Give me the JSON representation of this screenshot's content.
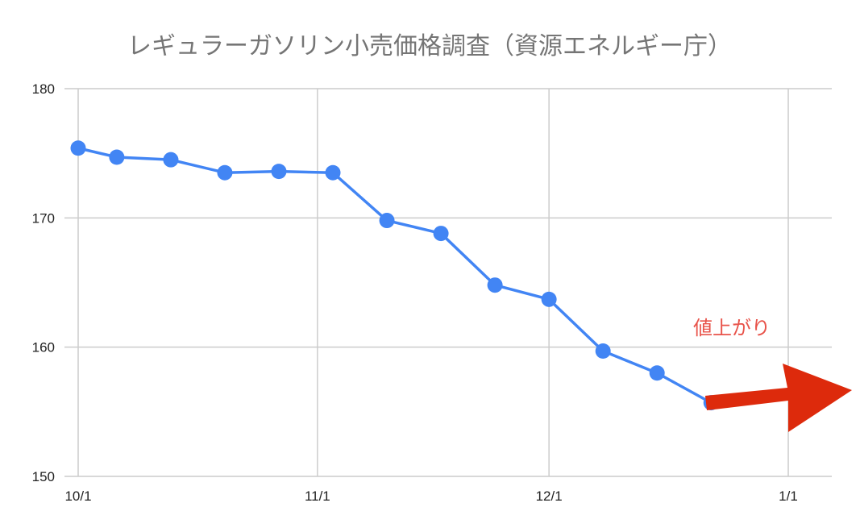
{
  "chart_data": {
    "type": "line",
    "title": "レギュラーガソリン小売価格調査（資源エネルギー庁）",
    "xlabel": "",
    "ylabel": "",
    "x_ticks": [
      "10/1",
      "11/1",
      "12/1",
      "1/1"
    ],
    "y_ticks": [
      150,
      160,
      170,
      180
    ],
    "ylim": [
      150,
      180
    ],
    "xlim": [
      "10/1",
      "1/1"
    ],
    "grid": true,
    "series": [
      {
        "color": "#4285f4",
        "x": [
          "10/1",
          "10/6",
          "10/13",
          "10/20",
          "10/27",
          "11/3",
          "11/10",
          "11/17",
          "11/24",
          "12/1",
          "12/8",
          "12/15",
          "12/22"
        ],
        "values": [
          175.4,
          174.7,
          174.5,
          173.5,
          173.6,
          173.5,
          169.8,
          168.8,
          164.8,
          163.7,
          159.7,
          158.0,
          155.7
        ]
      }
    ],
    "annotation": {
      "text": "値上がり",
      "color": "#e8534a",
      "arrow_color": "#dd2a0c"
    }
  }
}
